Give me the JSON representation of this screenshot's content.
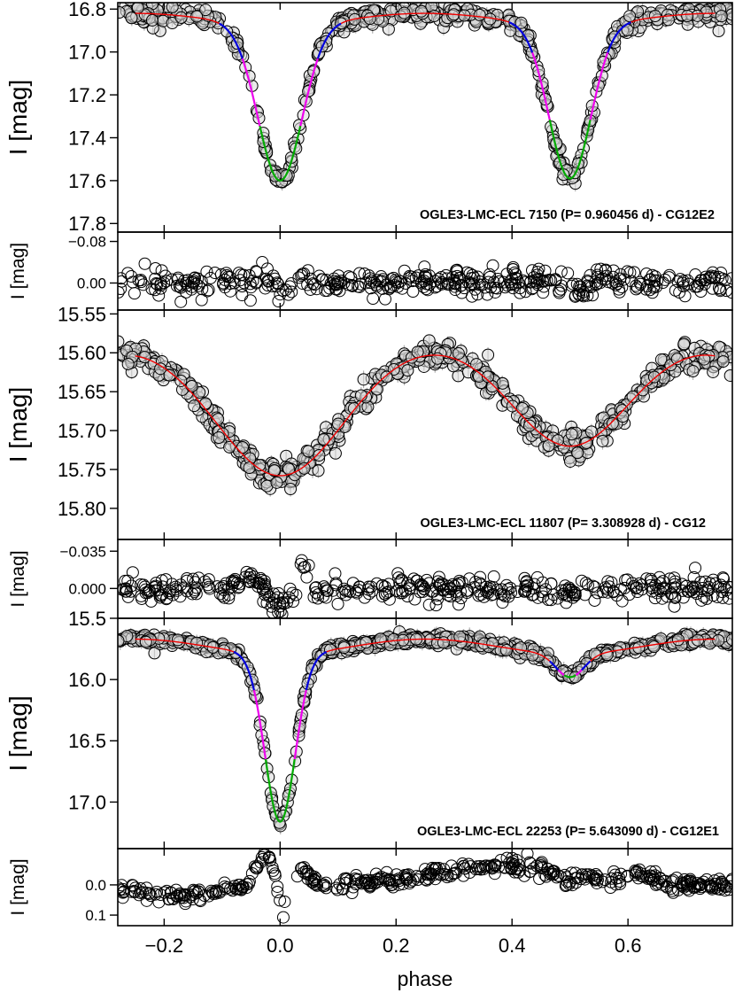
{
  "chart_data": {
    "type": "scatter",
    "xlabel": "phase",
    "xlim": [
      -0.28,
      0.78
    ],
    "x_ticks": [
      -0.2,
      0.0,
      0.2,
      0.4,
      0.6
    ],
    "x_tick_labels": [
      "−0.2",
      "0.0",
      "0.2",
      "0.4",
      "0.6"
    ],
    "colors": {
      "model": "#ee0000",
      "blue": "#0000dd",
      "magenta": "#ee00ee",
      "green": "#00aa00",
      "marker": "#000000",
      "error": "#b0b0b0"
    },
    "panels": [
      {
        "id": "lc1",
        "kind": "lightcurve",
        "ylabel": "I [mag]",
        "ylim": [
          17.84,
          16.77
        ],
        "y_ticks": [
          16.8,
          17.0,
          17.2,
          17.4,
          17.6,
          17.8
        ],
        "y_tick_labels": [
          "16.8",
          "17.0",
          "17.2",
          "17.4",
          "17.6",
          "17.8"
        ],
        "annotation": "OGLE3-LMC-ECL 7150  (P= 0.960456 d) - CG12E2",
        "model": {
          "base": 16.82,
          "curv": 0.05,
          "dips": [
            {
              "center": 0.0,
              "depth": 0.73,
              "width": 0.038
            },
            {
              "center": 0.5,
              "depth": 0.72,
              "width": 0.036
            }
          ]
        },
        "segments": [
          {
            "color": "blue",
            "ranges": [
              [
                -0.105,
                -0.065
              ],
              [
                0.065,
                0.105
              ],
              [
                0.395,
                0.435
              ],
              [
                0.565,
                0.605
              ]
            ]
          },
          {
            "color": "magenta",
            "ranges": [
              [
                -0.065,
                -0.035
              ],
              [
                0.035,
                0.065
              ],
              [
                0.435,
                0.465
              ],
              [
                0.535,
                0.565
              ]
            ]
          },
          {
            "color": "green",
            "ranges": [
              [
                -0.035,
                0.035
              ],
              [
                0.465,
                0.535
              ]
            ]
          }
        ],
        "scatter": {
          "n": 560,
          "noise": 0.022,
          "seed": 11
        }
      },
      {
        "id": "res1",
        "kind": "residual",
        "ylabel": "I [mag]",
        "ylim": [
          0.052,
          -0.098
        ],
        "y_ticks": [
          -0.08,
          0.0
        ],
        "y_tick_labels": [
          "−0.08",
          "0.00"
        ],
        "scatter": {
          "n": 430,
          "noise": 0.012,
          "seed": 21,
          "mode": "r1"
        }
      },
      {
        "id": "lc2",
        "kind": "lightcurve",
        "ylabel": "I [mag]",
        "ylim": [
          15.84,
          15.545
        ],
        "y_ticks": [
          15.55,
          15.6,
          15.65,
          15.7,
          15.75,
          15.8
        ],
        "y_tick_labels": [
          "15.55",
          "15.60",
          "15.65",
          "15.70",
          "15.75",
          "15.80"
        ],
        "annotation": "OGLE3-LMC-ECL 11807  (P= 3.308928 d) - CG12",
        "model": {
          "base": 15.585,
          "curv": 0.0,
          "dips": [
            {
              "center": 0.0,
              "depth": 0.173,
              "width": 0.11
            },
            {
              "center": 0.5,
              "depth": 0.135,
              "width": 0.1
            }
          ]
        },
        "segments": [],
        "scatter": {
          "n": 620,
          "noise": 0.009,
          "seed": 31
        }
      },
      {
        "id": "res2",
        "kind": "residual",
        "ylabel": "I [mag]",
        "ylim": [
          0.028,
          -0.046
        ],
        "y_ticks": [
          -0.035,
          0.0
        ],
        "y_tick_labels": [
          "−0.035",
          "0.000"
        ],
        "scatter": {
          "n": 430,
          "noise": 0.006,
          "seed": 41,
          "mode": "r2"
        }
      },
      {
        "id": "lc3",
        "kind": "lightcurve",
        "ylabel": "I [mag]",
        "ylim": [
          17.38,
          15.5
        ],
        "y_ticks": [
          15.5,
          16.0,
          16.5,
          17.0
        ],
        "y_tick_labels": [
          "15.5",
          "16.0",
          "16.5",
          "17.0"
        ],
        "annotation": "OGLE3-LMC-ECL 22253  (P= 5.643090 d) - CG12E1",
        "model": {
          "base": 15.67,
          "curv": 0.12,
          "dips": [
            {
              "center": 0.0,
              "depth": 1.37,
              "width": 0.026
            },
            {
              "center": 0.5,
              "depth": 0.19,
              "width": 0.024
            }
          ]
        },
        "segments": [
          {
            "color": "blue",
            "ranges": [
              [
                -0.08,
                -0.045
              ],
              [
                0.045,
                0.08
              ],
              [
                0.465,
                0.48
              ],
              [
                0.52,
                0.535
              ]
            ]
          },
          {
            "color": "magenta",
            "ranges": [
              [
                -0.045,
                -0.025
              ],
              [
                0.025,
                0.045
              ],
              [
                0.48,
                0.49
              ],
              [
                0.51,
                0.52
              ]
            ]
          },
          {
            "color": "green",
            "ranges": [
              [
                -0.025,
                0.025
              ],
              [
                0.49,
                0.51
              ]
            ]
          }
        ],
        "scatter": {
          "n": 700,
          "noise": 0.022,
          "seed": 51
        }
      },
      {
        "id": "res3",
        "kind": "residual",
        "ylabel": "I [mag]",
        "ylim": [
          0.135,
          -0.12
        ],
        "y_ticks": [
          0.0,
          0.1
        ],
        "y_tick_labels": [
          "0.0",
          "0.1"
        ],
        "scatter": {
          "n": 460,
          "noise": 0.012,
          "seed": 61,
          "mode": "r3"
        }
      }
    ]
  }
}
